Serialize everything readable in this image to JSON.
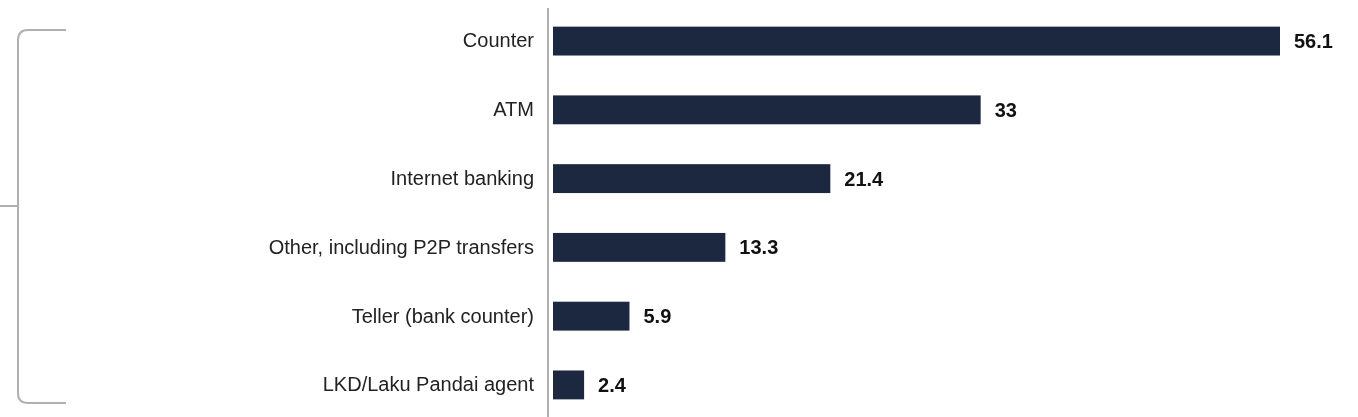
{
  "chart_data": {
    "type": "bar",
    "orientation": "horizontal",
    "categories": [
      "Counter",
      "ATM",
      "Internet banking",
      "Other, including P2P transfers",
      "Teller (bank counter)",
      "LKD/Laku Pandai agent"
    ],
    "values": [
      56.1,
      33,
      21.4,
      13.3,
      5.9,
      2.4
    ],
    "color": "#1b2840",
    "data_labels": true
  }
}
